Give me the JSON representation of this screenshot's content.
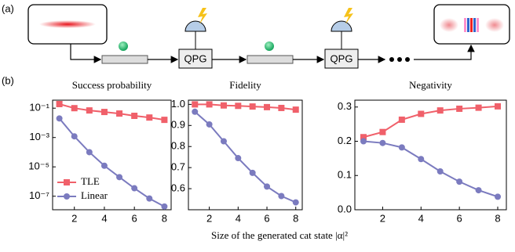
{
  "diagram": {
    "label": "(a)",
    "nodes": [
      "QPG",
      "QPG"
    ]
  },
  "panel_b_label": "(b)",
  "xlabel": "Size of the generated cat state |α|²",
  "chart_data": [
    {
      "type": "line",
      "title": "Success probability",
      "yscale": "log",
      "x": [
        1,
        2,
        3,
        4,
        5,
        6,
        7,
        8
      ],
      "xlim": [
        0.55,
        8.45
      ],
      "xticks": [
        2,
        4,
        6,
        8
      ],
      "ylim": [
        1.2e-08,
        0.35
      ],
      "yticks": [
        {
          "value": 0.1,
          "label": "10⁻¹"
        },
        {
          "value": 0.001,
          "label": "10⁻³"
        },
        {
          "value": 1e-05,
          "label": "10⁻⁵"
        },
        {
          "value": 1e-07,
          "label": "10⁻⁷"
        }
      ],
      "legend": "lower left",
      "series": [
        {
          "name": "TLE",
          "color": "#f0606a",
          "marker": "square",
          "values": [
            0.19,
            0.1,
            0.07,
            0.055,
            0.043,
            0.03,
            0.023,
            0.016
          ]
        },
        {
          "name": "Linear",
          "color": "#7b7bbf",
          "marker": "circle",
          "values": [
            0.02,
            0.0012,
            0.0001,
            1.2e-05,
            2e-06,
            3.5e-07,
            7e-08,
            2e-08
          ]
        }
      ]
    },
    {
      "type": "line",
      "title": "Fidelity",
      "x": [
        1,
        2,
        3,
        4,
        5,
        6,
        7,
        8
      ],
      "xlim": [
        0.55,
        8.45
      ],
      "xticks": [
        2,
        4,
        6,
        8
      ],
      "ylim": [
        0.5,
        1.02
      ],
      "yticks": [
        0.6,
        0.7,
        0.8,
        0.9,
        {
          "value": 1,
          "label": "1.0"
        }
      ],
      "series": [
        {
          "color": "#f0606a",
          "marker": "square",
          "values": [
            1.0,
            1.0,
            0.995,
            0.993,
            0.99,
            0.987,
            0.983,
            0.975
          ]
        },
        {
          "color": "#7b7bbf",
          "marker": "circle",
          "values": [
            0.965,
            0.905,
            0.825,
            0.745,
            0.675,
            0.61,
            0.565,
            0.535
          ]
        }
      ]
    },
    {
      "type": "line",
      "title": "Negativity",
      "x": [
        1,
        2,
        3,
        4,
        5,
        6,
        7,
        8
      ],
      "xlim": [
        0.55,
        8.45
      ],
      "xticks": [
        2,
        4,
        6,
        8
      ],
      "ylim": [
        0,
        0.32
      ],
      "yticks": [
        {
          "value": 0,
          "label": "0.0"
        },
        0.1,
        0.2,
        0.3
      ],
      "series": [
        {
          "color": "#f0606a",
          "marker": "square",
          "values": [
            0.212,
            0.227,
            0.263,
            0.28,
            0.29,
            0.295,
            0.298,
            0.302
          ]
        },
        {
          "color": "#7b7bbf",
          "marker": "circle",
          "values": [
            0.2,
            0.195,
            0.182,
            0.148,
            0.112,
            0.082,
            0.057,
            0.038
          ]
        }
      ]
    }
  ]
}
